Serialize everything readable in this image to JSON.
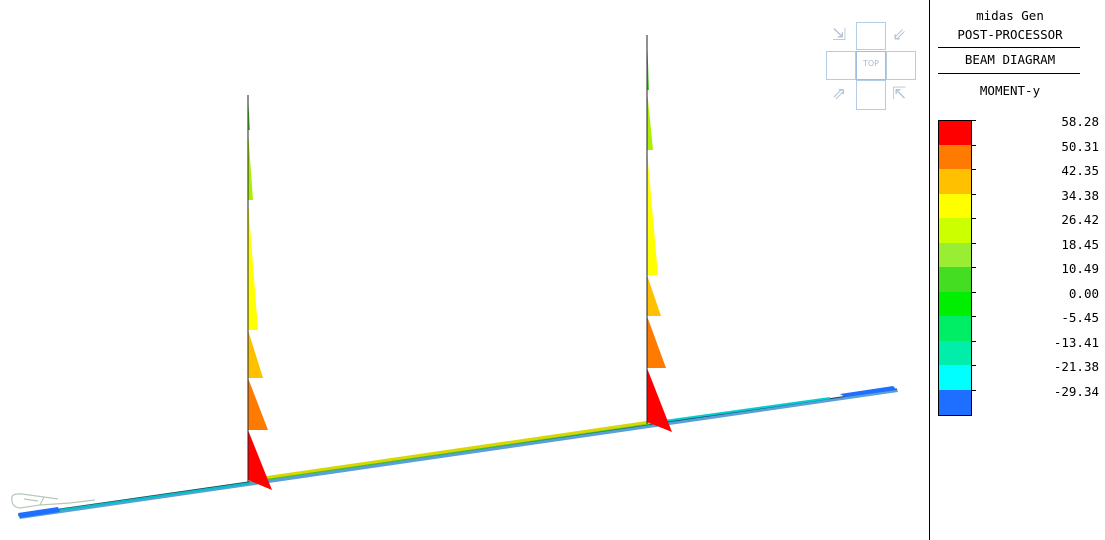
{
  "header": {
    "app": "midas Gen",
    "mode": "POST-PROCESSOR",
    "diagram": "BEAM DIAGRAM",
    "component": "MOMENT-y"
  },
  "navcube": {
    "face_label": "TOP"
  },
  "legend": {
    "labels": [
      "58.28",
      "50.31",
      "42.35",
      "34.38",
      "26.42",
      "18.45",
      "10.49",
      "0.00",
      "-5.45",
      "-13.41",
      "-21.38",
      "-29.34"
    ],
    "colors": [
      "#ff0000",
      "#ff7a00",
      "#ffc000",
      "#ffff00",
      "#ccff00",
      "#99ee33",
      "#44dd22",
      "#00ee00",
      "#00ee66",
      "#00eeaa",
      "#00ffff",
      "#1e6eff"
    ]
  }
}
